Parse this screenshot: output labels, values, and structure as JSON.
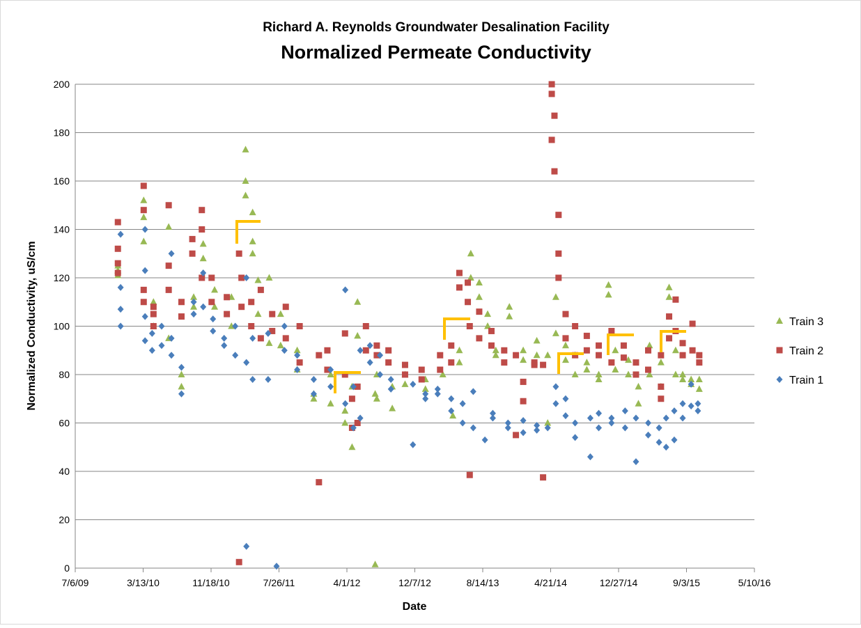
{
  "chart_data": {
    "type": "scatter",
    "title": "Richard A. Reynolds Groundwater Desalination Facility",
    "subtitle": "Normalized Permeate Conductivity",
    "x_label": "Date",
    "y_label": "Normalized Conductivity, uS/cm",
    "xlim": [
      "7/6/09",
      "5/10/16"
    ],
    "xticks": [
      "7/6/09",
      "3/13/10",
      "11/18/10",
      "7/26/11",
      "4/1/12",
      "12/7/12",
      "8/14/13",
      "4/21/14",
      "12/27/14",
      "9/3/15",
      "5/10/16"
    ],
    "ylim": [
      0,
      200
    ],
    "yticks": [
      0,
      20,
      40,
      60,
      80,
      100,
      120,
      140,
      160,
      180,
      200
    ],
    "grid": true,
    "legend": "right",
    "series": [
      {
        "name": "Train 3",
        "color": "#98b954",
        "marker": "triangle",
        "x": [
          "12/10/09",
          "12/10/09",
          "12/10/09",
          "3/15/10",
          "3/15/10",
          "3/15/10",
          "4/20/10",
          "4/20/10",
          "6/15/10",
          "6/15/10",
          "8/1/10",
          "8/1/10",
          "9/15/10",
          "9/15/10",
          "10/20/10",
          "10/20/10",
          "12/1/10",
          "12/1/10",
          "2/1/11",
          "2/1/11",
          "3/25/11",
          "3/25/11",
          "3/25/11",
          "4/20/11",
          "4/20/11",
          "4/20/11",
          "5/10/11",
          "5/10/11",
          "6/20/11",
          "6/20/11",
          "8/1/11",
          "8/1/11",
          "10/1/11",
          "10/1/11",
          "12/1/11",
          "12/1/11",
          "2/1/12",
          "2/1/12",
          "3/25/12",
          "3/25/12",
          "4/20/12",
          "4/20/12",
          "5/10/12",
          "5/10/12",
          "7/14/12",
          "7/14/12",
          "7/20/12",
          "7/20/12",
          "9/15/12",
          "9/15/12",
          "11/1/12",
          "11/1/12",
          "1/15/13",
          "1/15/13",
          "3/20/13",
          "4/26/13",
          "5/20/13",
          "5/20/13",
          "7/1/13",
          "7/1/13",
          "8/1/13",
          "8/1/13",
          "9/1/13",
          "9/1/13",
          "10/1/13",
          "10/1/13",
          "11/20/13",
          "11/20/13",
          "1/10/14",
          "1/10/14",
          "3/1/14",
          "3/1/14",
          "4/10/14",
          "4/10/14",
          "5/10/14",
          "5/10/14",
          "6/15/14",
          "6/15/14",
          "7/20/14",
          "7/20/14",
          "9/1/14",
          "9/1/14",
          "10/15/14",
          "10/15/14",
          "11/20/14",
          "11/20/14",
          "12/15/14",
          "12/15/14",
          "2/1/15",
          "2/1/15",
          "3/10/15",
          "3/10/15",
          "4/20/15",
          "4/20/15",
          "6/1/15",
          "6/1/15",
          "7/1/15",
          "7/1/15",
          "7/25/15",
          "7/25/15",
          "8/20/15",
          "8/20/15",
          "9/20/15",
          "9/20/15",
          "10/20/15",
          "10/20/15"
        ],
        "values": [
          123,
          121,
          125,
          152,
          145,
          135,
          110,
          100,
          141,
          95,
          75,
          80,
          112,
          108,
          134,
          128,
          108,
          115,
          112,
          100,
          160,
          154,
          173,
          147,
          130,
          135,
          119,
          105,
          120,
          93,
          105,
          92,
          90,
          82,
          72,
          70,
          80,
          68,
          65,
          60,
          50,
          75,
          110,
          96,
          1.5,
          72,
          80,
          70,
          66,
          75,
          76,
          80,
          74,
          78,
          80,
          63,
          85,
          90,
          120,
          130,
          112,
          118,
          105,
          100,
          88,
          90,
          108,
          104,
          90,
          86,
          94,
          88,
          60,
          88,
          112,
          97,
          86,
          92,
          80,
          88,
          82,
          85,
          80,
          78,
          117,
          113,
          90,
          82,
          80,
          86,
          68,
          75,
          80,
          92,
          85,
          75,
          116,
          112,
          90,
          80,
          78,
          80,
          76,
          78,
          74,
          78
        ]
      },
      {
        "name": "Train 2",
        "color": "#be4b48",
        "marker": "square",
        "x": [
          "12/10/09",
          "12/10/09",
          "12/10/09",
          "12/10/09",
          "3/15/10",
          "3/15/10",
          "3/15/10",
          "3/15/10",
          "4/20/10",
          "4/20/10",
          "4/20/10",
          "6/15/10",
          "6/15/10",
          "6/15/10",
          "8/1/10",
          "8/1/10",
          "9/10/10",
          "9/10/10",
          "10/15/10",
          "10/15/10",
          "10/15/10",
          "11/20/10",
          "11/20/10",
          "1/15/11",
          "1/15/11",
          "3/1/11",
          "3/1/11",
          "3/10/11",
          "3/10/11",
          "4/15/11",
          "4/15/11",
          "5/20/11",
          "5/20/11",
          "7/1/11",
          "7/1/11",
          "8/20/11",
          "8/20/11",
          "10/10/11",
          "10/10/11",
          "12/20/11",
          "12/20/11",
          "1/20/12",
          "1/20/12",
          "3/25/12",
          "3/25/12",
          "4/20/12",
          "4/20/12",
          "5/10/12",
          "5/10/12",
          "6/10/12",
          "6/10/12",
          "7/20/12",
          "7/20/12",
          "9/1/12",
          "9/1/12",
          "11/1/12",
          "11/1/12",
          "1/1/13",
          "1/1/13",
          "3/10/13",
          "3/10/13",
          "4/20/13",
          "4/20/13",
          "5/20/13",
          "5/20/13",
          "6/20/13",
          "6/20/13",
          "6/27/13",
          "6/27/13",
          "8/1/13",
          "8/1/13",
          "9/15/13",
          "9/15/13",
          "11/1/13",
          "11/1/13",
          "12/14/13",
          "12/14/13",
          "1/10/14",
          "1/10/14",
          "2/20/14",
          "2/20/14",
          "3/24/14",
          "3/24/14",
          "4/25/14",
          "4/25/14",
          "4/25/14",
          "5/5/14",
          "5/5/14",
          "5/20/14",
          "5/20/14",
          "5/20/14",
          "6/15/14",
          "6/15/14",
          "7/20/14",
          "7/20/14",
          "9/1/14",
          "9/1/14",
          "10/15/14",
          "10/15/14",
          "12/1/14",
          "12/1/14",
          "1/15/15",
          "1/15/15",
          "3/1/15",
          "3/1/15",
          "4/15/15",
          "4/15/15",
          "6/1/15",
          "6/1/15",
          "6/1/15",
          "7/1/15",
          "7/1/15",
          "7/25/15",
          "7/25/15",
          "8/20/15",
          "8/20/15",
          "9/25/15",
          "9/25/15",
          "10/20/15",
          "10/20/15"
        ],
        "values": [
          126,
          143,
          132,
          122,
          115,
          158,
          148,
          110,
          105,
          100,
          108,
          150,
          115,
          125,
          104,
          110,
          136,
          130,
          148,
          140,
          120,
          120,
          110,
          112,
          105,
          2.5,
          130,
          120,
          108,
          100,
          110,
          95,
          115,
          105,
          98,
          108,
          95,
          100,
          85,
          35.5,
          88,
          82,
          90,
          97,
          80,
          58,
          70,
          60,
          75,
          100,
          90,
          92,
          88,
          85,
          90,
          84,
          80,
          82,
          78,
          88,
          82,
          92,
          85,
          122,
          116,
          110,
          118,
          38.5,
          100,
          95,
          106,
          98,
          92,
          90,
          85,
          55,
          88,
          69,
          77,
          85,
          84,
          37.5,
          84,
          196,
          200,
          177,
          164,
          187,
          146,
          130,
          120,
          95,
          105,
          88,
          100,
          90,
          96,
          92,
          88,
          98,
          85,
          92,
          87,
          85,
          80,
          90,
          82,
          88,
          75,
          70,
          95,
          104,
          111,
          98,
          93,
          88,
          101,
          90,
          88,
          85
        ]
      },
      {
        "name": "Train 1",
        "color": "#4a7ebb",
        "marker": "diamond",
        "x": [
          "12/20/09",
          "12/20/09",
          "12/20/09",
          "12/20/09",
          "3/20/10",
          "3/20/10",
          "3/20/10",
          "3/20/10",
          "4/15/10",
          "4/15/10",
          "5/20/10",
          "5/20/10",
          "6/25/10",
          "6/25/10",
          "6/25/10",
          "8/1/10",
          "8/1/10",
          "9/15/10",
          "9/15/10",
          "10/20/10",
          "10/20/10",
          "11/25/10",
          "11/25/10",
          "1/5/11",
          "1/5/11",
          "2/15/11",
          "2/15/11",
          "3/28/11",
          "3/28/11",
          "3/28/11",
          "4/20/11",
          "4/20/11",
          "6/16/11",
          "6/16/11",
          "7/17/11",
          "8/15/11",
          "8/15/11",
          "10/1/11",
          "10/1/11",
          "12/1/11",
          "12/1/11",
          "2/1/12",
          "2/1/12",
          "3/26/12",
          "3/26/12",
          "4/25/12",
          "4/25/12",
          "5/20/12",
          "5/20/12",
          "6/25/12",
          "6/25/12",
          "8/1/12",
          "8/1/12",
          "9/10/12",
          "9/10/12",
          "11/30/12",
          "11/30/12",
          "1/15/13",
          "1/15/13",
          "3/1/13",
          "3/1/13",
          "4/20/13",
          "4/20/13",
          "6/1/13",
          "6/1/13",
          "7/10/13",
          "7/10/13",
          "8/22/13",
          "9/20/13",
          "9/20/13",
          "11/15/13",
          "11/15/13",
          "1/10/14",
          "1/10/14",
          "3/1/14",
          "3/1/14",
          "4/10/14",
          "5/10/14",
          "5/10/14",
          "6/15/14",
          "6/15/14",
          "7/20/14",
          "7/20/14",
          "9/14/14",
          "9/14/14",
          "10/15/14",
          "10/15/14",
          "12/1/14",
          "12/1/14",
          "1/20/15",
          "1/20/15",
          "3/1/15",
          "3/1/15",
          "4/15/15",
          "4/15/15",
          "5/25/15",
          "5/25/15",
          "6/20/15",
          "6/20/15",
          "7/20/15",
          "7/20/15",
          "8/20/15",
          "8/20/15",
          "9/20/15",
          "9/20/15",
          "10/15/15",
          "10/15/15"
        ],
        "values": [
          138,
          116,
          100,
          107,
          104,
          94,
          140,
          123,
          90,
          97,
          100,
          92,
          95,
          130,
          88,
          72,
          83,
          105,
          110,
          122,
          108,
          103,
          98,
          95,
          92,
          100,
          88,
          9,
          120,
          85,
          78,
          95,
          97,
          78,
          0.8,
          100,
          90,
          88,
          82,
          78,
          72,
          75,
          82,
          115,
          68,
          58,
          75,
          90,
          62,
          92,
          85,
          80,
          88,
          78,
          74,
          51,
          76,
          72,
          70,
          74,
          72,
          65,
          70,
          60,
          68,
          73,
          58,
          53,
          62,
          64,
          60,
          58,
          61,
          56,
          59,
          57,
          58,
          75,
          68,
          63,
          70,
          60,
          54,
          46,
          62,
          58,
          64,
          62,
          60,
          65,
          58,
          62,
          44,
          55,
          60,
          52,
          58,
          62,
          50,
          65,
          53,
          68,
          62,
          67,
          76,
          68,
          65
        ]
      }
    ]
  }
}
